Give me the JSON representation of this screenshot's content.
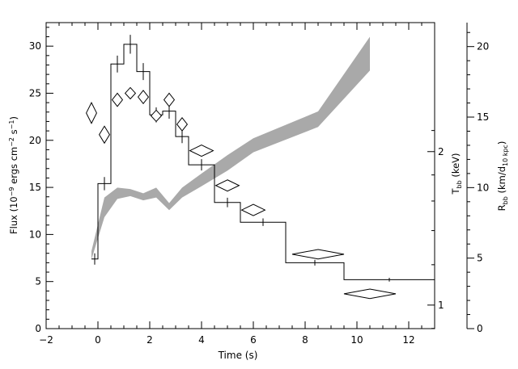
{
  "chart_data": {
    "type": "line",
    "xlabel": "Time (s)",
    "ylabel_left": "Flux (10",
    "ylabel_left_exp1": "−9",
    "ylabel_left_mid": " ergs cm",
    "ylabel_left_exp2": "−2",
    "ylabel_left_end": " s",
    "ylabel_left_exp3": "−1",
    "ylabel_left_close": ")",
    "ylabel_tbb": "T",
    "ylabel_tbb_sub": "bb",
    "ylabel_tbb_unit": " (keV)",
    "ylabel_rbb": "R",
    "ylabel_rbb_sub": "bb",
    "ylabel_rbb_unit": " (km/d",
    "ylabel_rbb_sub2": "10 kpc",
    "ylabel_rbb_close": ")",
    "xlim": [
      -2,
      13
    ],
    "ylim_flux": [
      0,
      32.5
    ],
    "ylim_radius": [
      0,
      21.7
    ],
    "x_ticks": [
      "−2",
      "0",
      "2",
      "4",
      "6",
      "8",
      "10",
      "12"
    ],
    "x_tick_values": [
      -2,
      0,
      2,
      4,
      6,
      8,
      10,
      12
    ],
    "y_ticks_flux": [
      "0",
      "5",
      "10",
      "15",
      "20",
      "25",
      "30"
    ],
    "y_tick_values_flux": [
      0,
      5,
      10,
      15,
      20,
      25,
      30
    ],
    "y_ticks_radius": [
      "0",
      "5",
      "10",
      "15",
      "20"
    ],
    "y_tick_values_radius": [
      0,
      5,
      10,
      15,
      20
    ],
    "y_ticks_temp": [
      "1",
      "2"
    ],
    "y_tick_values_temp": [
      1.0,
      2.0
    ],
    "temp_axis_flux_equiv": [
      2.5,
      18.8
    ],
    "series": [
      {
        "kind": "flux-histogram",
        "edges": [
          -0.25,
          0.0,
          0.5,
          1.0,
          1.5,
          2.0,
          2.5,
          3.0,
          3.5,
          4.5,
          5.5,
          7.25,
          9.5,
          13.0
        ],
        "values": [
          7.4,
          15.4,
          28.1,
          30.2,
          27.3,
          22.7,
          23.1,
          20.4,
          17.4,
          13.4,
          11.3,
          7.0,
          5.2
        ],
        "errors": [
          0.6,
          0.7,
          0.9,
          1.0,
          0.9,
          0.8,
          0.8,
          0.7,
          0.6,
          0.5,
          0.4,
          0.3,
          0.2
        ]
      },
      {
        "kind": "temperature-diamonds",
        "points": [
          {
            "x": -0.25,
            "y": 22.9,
            "xerr": 0.2,
            "yerr": 1.1
          },
          {
            "x": 0.25,
            "y": 20.6,
            "xerr": 0.2,
            "yerr": 0.9
          },
          {
            "x": 0.75,
            "y": 24.3,
            "xerr": 0.2,
            "yerr": 0.7
          },
          {
            "x": 1.25,
            "y": 25.0,
            "xerr": 0.2,
            "yerr": 0.6
          },
          {
            "x": 1.75,
            "y": 24.6,
            "xerr": 0.2,
            "yerr": 0.7
          },
          {
            "x": 2.25,
            "y": 22.6,
            "xerr": 0.2,
            "yerr": 0.6
          },
          {
            "x": 2.75,
            "y": 24.3,
            "xerr": 0.2,
            "yerr": 0.7
          },
          {
            "x": 3.25,
            "y": 21.7,
            "xerr": 0.2,
            "yerr": 0.7
          },
          {
            "x": 4.0,
            "y": 18.9,
            "xerr": 0.45,
            "yerr": 0.6
          },
          {
            "x": 5.0,
            "y": 15.2,
            "xerr": 0.45,
            "yerr": 0.6
          },
          {
            "x": 6.0,
            "y": 12.6,
            "xerr": 0.45,
            "yerr": 0.6
          },
          {
            "x": 8.5,
            "y": 7.9,
            "xerr": 1.0,
            "yerr": 0.5
          },
          {
            "x": 10.5,
            "y": 3.7,
            "xerr": 1.0,
            "yerr": 0.5
          }
        ]
      },
      {
        "kind": "radius-band",
        "x": [
          -0.25,
          0.25,
          0.75,
          1.25,
          1.75,
          2.25,
          2.75,
          3.25,
          4.0,
          5.0,
          6.0,
          8.5,
          10.5
        ],
        "low": [
          4.9,
          7.9,
          9.2,
          9.4,
          9.1,
          9.3,
          8.4,
          9.3,
          10.1,
          11.2,
          12.5,
          14.3,
          18.3
        ],
        "high": [
          5.5,
          9.3,
          10.0,
          9.9,
          9.6,
          10.0,
          8.9,
          10.0,
          11.0,
          12.3,
          13.5,
          15.4,
          20.7
        ]
      }
    ]
  },
  "colors": {
    "axes": "#000000",
    "band": "#a9a9a9",
    "background": "#ffffff"
  }
}
